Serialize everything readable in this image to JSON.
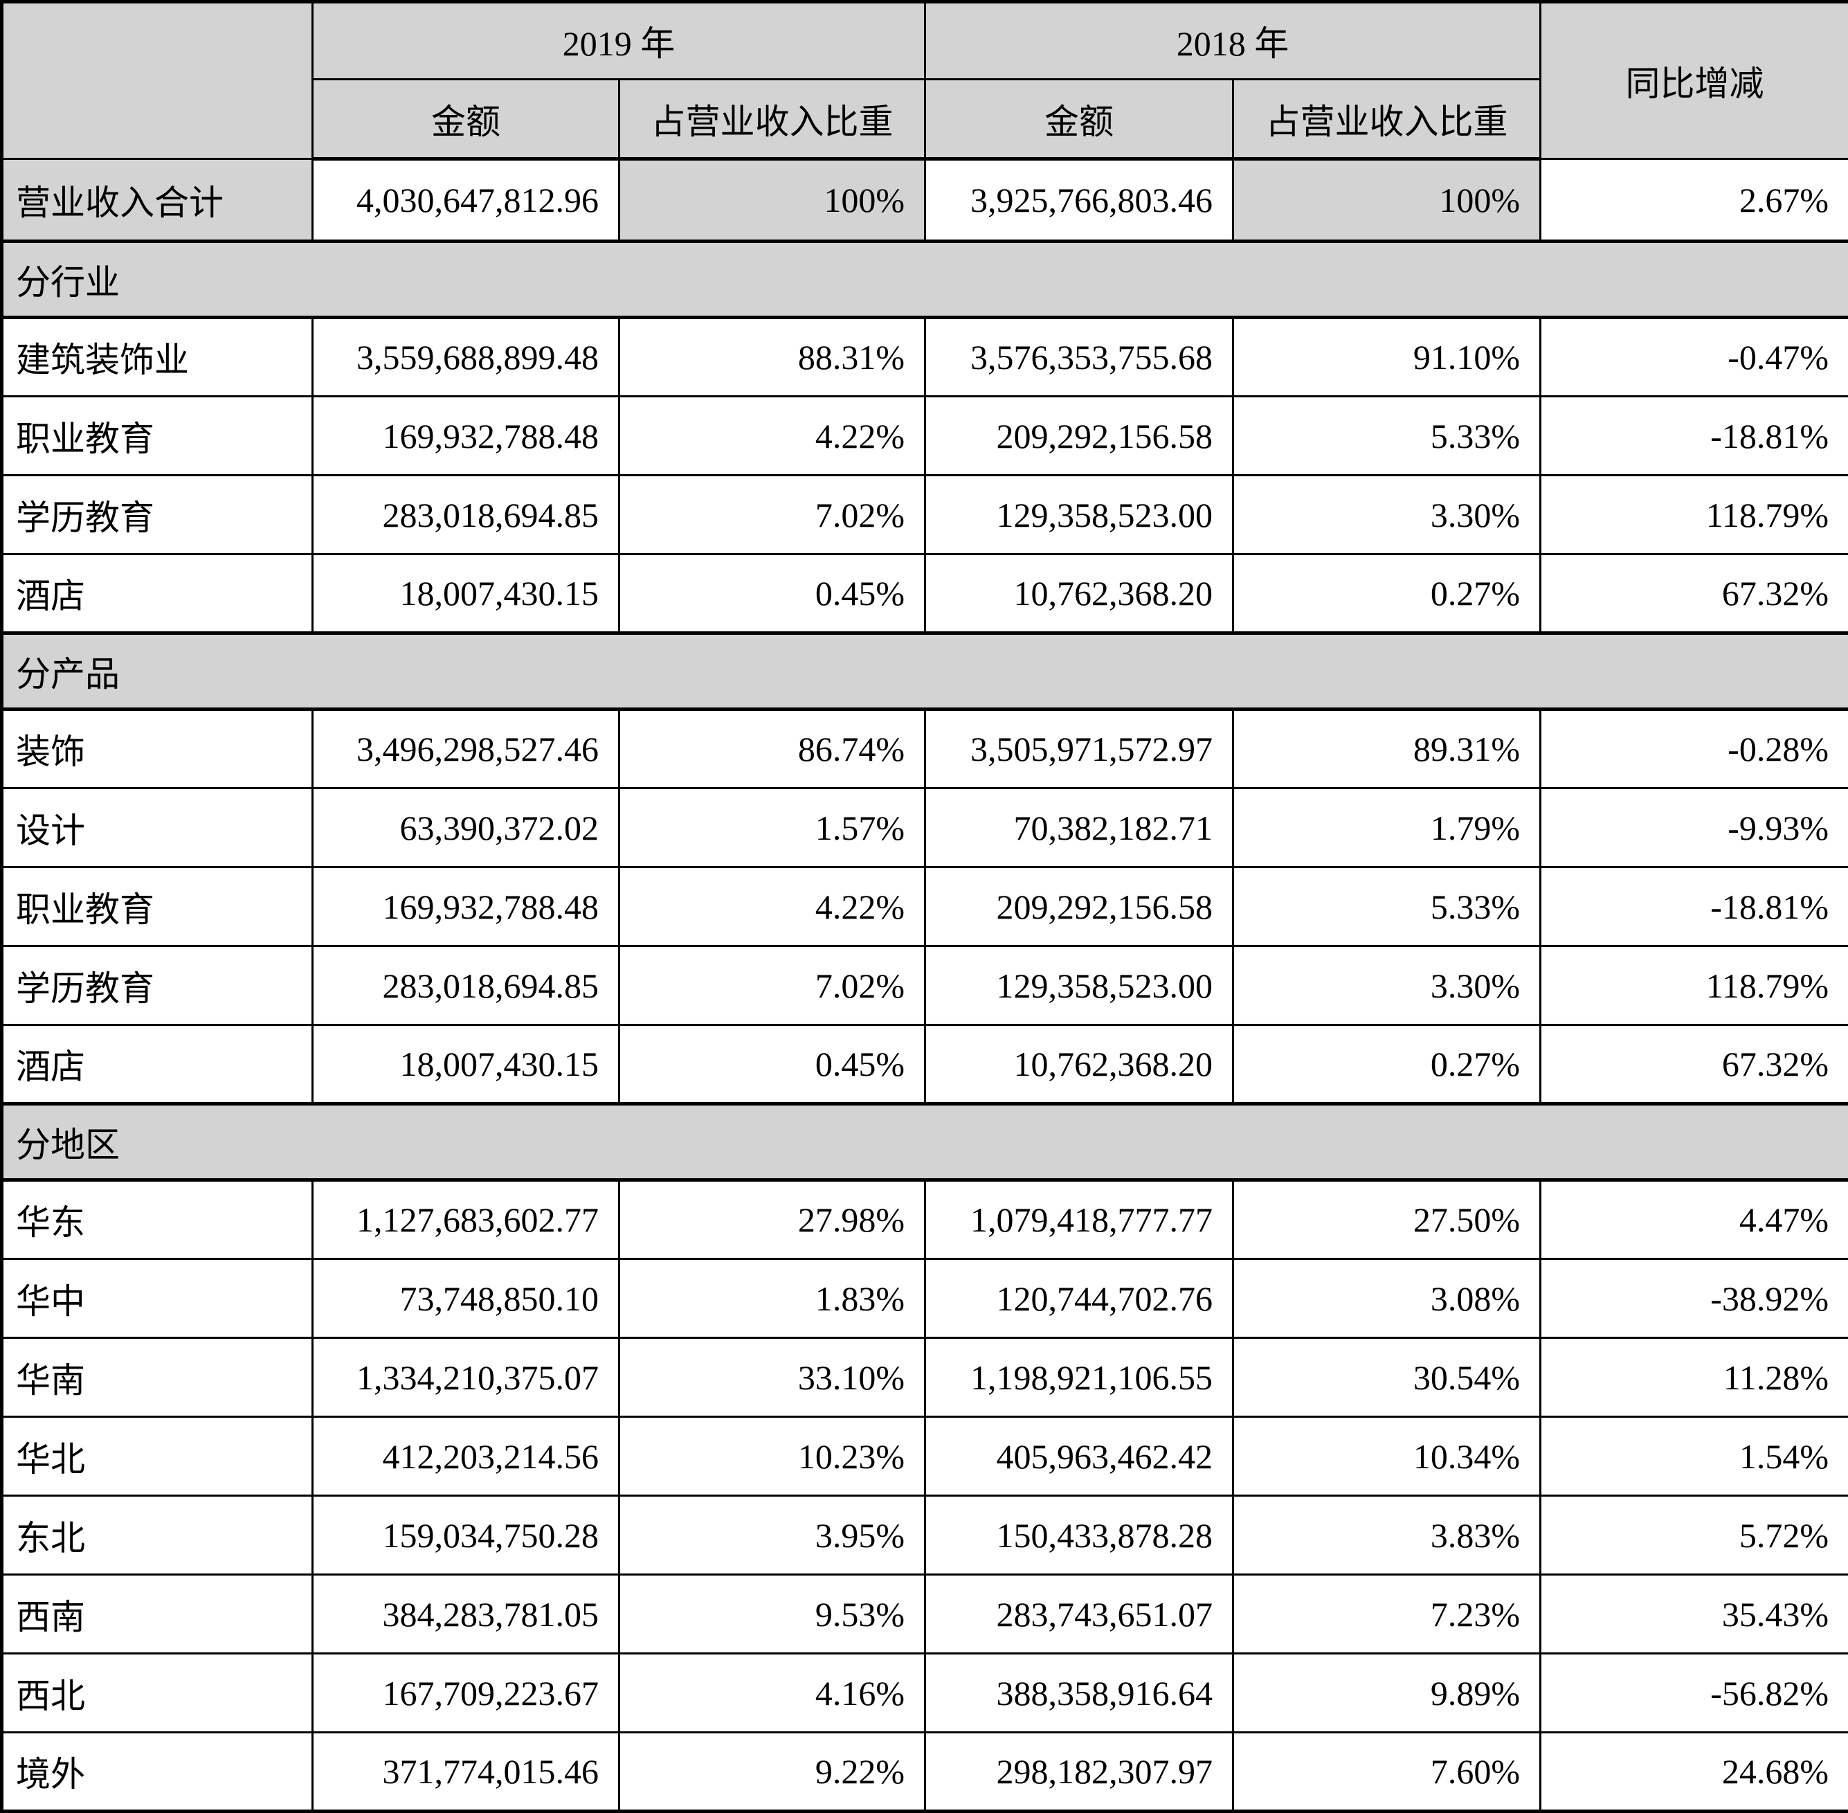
{
  "table": {
    "colors": {
      "header_bg": "#d3d3d3",
      "border": "#000000",
      "row_bg": "#ffffff"
    },
    "header": {
      "corner": "",
      "year_2019": "2019 年",
      "year_2018": "2018 年",
      "yoy_label": "同比增减",
      "amount_label": "金额",
      "share_label": "占营业收入比重"
    },
    "total_row": {
      "label": "营业收入合计",
      "cells": [
        "4,030,647,812.96",
        "100%",
        "3,925,766,803.46",
        "100%",
        "2.67%"
      ]
    },
    "sections": [
      {
        "title": "分行业",
        "rows": [
          {
            "label": "建筑装饰业",
            "cells": [
              "3,559,688,899.48",
              "88.31%",
              "3,576,353,755.68",
              "91.10%",
              "-0.47%"
            ]
          },
          {
            "label": "职业教育",
            "cells": [
              "169,932,788.48",
              "4.22%",
              "209,292,156.58",
              "5.33%",
              "-18.81%"
            ]
          },
          {
            "label": "学历教育",
            "cells": [
              "283,018,694.85",
              "7.02%",
              "129,358,523.00",
              "3.30%",
              "118.79%"
            ]
          },
          {
            "label": "酒店",
            "cells": [
              "18,007,430.15",
              "0.45%",
              "10,762,368.20",
              "0.27%",
              "67.32%"
            ]
          }
        ]
      },
      {
        "title": "分产品",
        "rows": [
          {
            "label": "装饰",
            "cells": [
              "3,496,298,527.46",
              "86.74%",
              "3,505,971,572.97",
              "89.31%",
              "-0.28%"
            ]
          },
          {
            "label": "设计",
            "cells": [
              "63,390,372.02",
              "1.57%",
              "70,382,182.71",
              "1.79%",
              "-9.93%"
            ]
          },
          {
            "label": "职业教育",
            "cells": [
              "169,932,788.48",
              "4.22%",
              "209,292,156.58",
              "5.33%",
              "-18.81%"
            ]
          },
          {
            "label": "学历教育",
            "cells": [
              "283,018,694.85",
              "7.02%",
              "129,358,523.00",
              "3.30%",
              "118.79%"
            ]
          },
          {
            "label": "酒店",
            "cells": [
              "18,007,430.15",
              "0.45%",
              "10,762,368.20",
              "0.27%",
              "67.32%"
            ]
          }
        ]
      },
      {
        "title": "分地区",
        "rows": [
          {
            "label": "华东",
            "cells": [
              "1,127,683,602.77",
              "27.98%",
              "1,079,418,777.77",
              "27.50%",
              "4.47%"
            ]
          },
          {
            "label": "华中",
            "cells": [
              "73,748,850.10",
              "1.83%",
              "120,744,702.76",
              "3.08%",
              "-38.92%"
            ]
          },
          {
            "label": "华南",
            "cells": [
              "1,334,210,375.07",
              "33.10%",
              "1,198,921,106.55",
              "30.54%",
              "11.28%"
            ]
          },
          {
            "label": "华北",
            "cells": [
              "412,203,214.56",
              "10.23%",
              "405,963,462.42",
              "10.34%",
              "1.54%"
            ]
          },
          {
            "label": "东北",
            "cells": [
              "159,034,750.28",
              "3.95%",
              "150,433,878.28",
              "3.83%",
              "5.72%"
            ]
          },
          {
            "label": "西南",
            "cells": [
              "384,283,781.05",
              "9.53%",
              "283,743,651.07",
              "7.23%",
              "35.43%"
            ]
          },
          {
            "label": "西北",
            "cells": [
              "167,709,223.67",
              "4.16%",
              "388,358,916.64",
              "9.89%",
              "-56.82%"
            ]
          },
          {
            "label": "境外",
            "cells": [
              "371,774,015.46",
              "9.22%",
              "298,182,307.97",
              "7.60%",
              "24.68%"
            ]
          }
        ]
      }
    ]
  }
}
